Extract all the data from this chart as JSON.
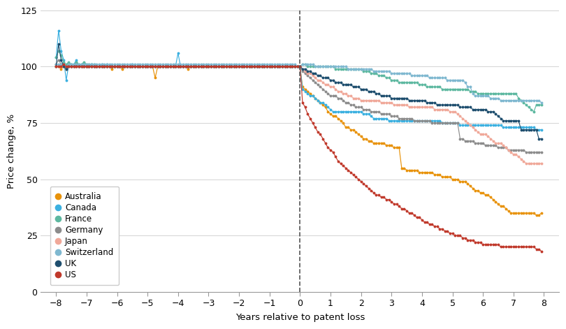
{
  "countries": [
    "Australia",
    "Canada",
    "France",
    "Germany",
    "Japan",
    "Switzerland",
    "UK",
    "US"
  ],
  "colors": [
    "#E8920A",
    "#3BB0E0",
    "#5DB8A0",
    "#8C8C8C",
    "#F0A899",
    "#7FB8D0",
    "#1E4E6E",
    "#C0392B"
  ],
  "step": 0.083333,
  "x_start": -8,
  "x_end": 8,
  "Australia_pre": [
    100,
    100,
    99,
    100,
    99,
    100,
    100,
    100,
    100,
    100,
    100,
    100,
    100,
    100,
    100,
    100,
    100,
    100,
    100,
    100,
    100,
    100,
    99,
    100,
    100,
    100,
    99,
    100,
    100,
    100,
    100,
    100,
    100,
    100,
    100,
    100,
    100,
    100,
    100,
    95,
    100,
    100,
    100,
    100,
    100,
    100,
    100,
    100,
    100,
    100,
    100,
    100,
    99,
    100,
    100,
    100,
    100,
    100,
    100,
    100,
    100,
    100,
    100,
    100,
    100,
    100,
    100,
    100,
    100,
    100,
    100,
    100,
    100,
    100,
    100,
    100,
    100,
    100,
    100,
    100,
    100,
    100,
    100,
    100,
    100,
    100,
    100,
    100,
    100,
    100,
    100,
    100,
    100,
    100,
    100,
    100
  ],
  "Australia_post": [
    100,
    91,
    90,
    89,
    88,
    87,
    86,
    85,
    84,
    83,
    82,
    80,
    79,
    78,
    78,
    77,
    76,
    75,
    73,
    73,
    72,
    72,
    71,
    70,
    69,
    68,
    68,
    67,
    67,
    66,
    66,
    66,
    66,
    66,
    65,
    65,
    65,
    64,
    64,
    64,
    55,
    55,
    54,
    54,
    54,
    54,
    54,
    53,
    53,
    53,
    53,
    53,
    53,
    52,
    52,
    52,
    51,
    51,
    51,
    51,
    50,
    50,
    50,
    49,
    49,
    49,
    48,
    47,
    46,
    45,
    45,
    44,
    44,
    43,
    43,
    42,
    41,
    40,
    39,
    38,
    38,
    37,
    36,
    35,
    35,
    35,
    35,
    35,
    35,
    35,
    35,
    35,
    35,
    34,
    34,
    35
  ],
  "Canada_pre": [
    104,
    116,
    107,
    103,
    94,
    101,
    101,
    101,
    103,
    100,
    101,
    101,
    100,
    100,
    101,
    100,
    100,
    100,
    101,
    100,
    101,
    100,
    100,
    100,
    100,
    100,
    100,
    100,
    100,
    100,
    101,
    100,
    100,
    100,
    100,
    100,
    100,
    100,
    100,
    100,
    100,
    100,
    100,
    100,
    100,
    100,
    100,
    100,
    106,
    100,
    100,
    100,
    100,
    100,
    100,
    100,
    100,
    100,
    100,
    100,
    100,
    100,
    100,
    100,
    100,
    100,
    100,
    100,
    100,
    100,
    100,
    100,
    100,
    100,
    100,
    100,
    100,
    100,
    100,
    100,
    100,
    100,
    100,
    100,
    100,
    100,
    100,
    100,
    100,
    100,
    100,
    100,
    100,
    100,
    100,
    100
  ],
  "Canada_post": [
    100,
    90,
    89,
    88,
    87,
    87,
    86,
    85,
    84,
    84,
    83,
    82,
    81,
    80,
    80,
    80,
    80,
    80,
    80,
    80,
    80,
    80,
    80,
    80,
    80,
    79,
    79,
    79,
    78,
    77,
    77,
    77,
    77,
    77,
    77,
    76,
    76,
    76,
    76,
    76,
    76,
    76,
    76,
    76,
    76,
    76,
    76,
    76,
    76,
    76,
    76,
    76,
    76,
    76,
    76,
    76,
    75,
    75,
    75,
    75,
    75,
    75,
    75,
    74,
    74,
    74,
    74,
    74,
    74,
    74,
    74,
    74,
    74,
    74,
    74,
    74,
    74,
    74,
    74,
    74,
    73,
    73,
    73,
    73,
    73,
    73,
    73,
    73,
    73,
    73,
    73,
    73,
    73,
    72,
    72,
    72
  ],
  "France_pre": [
    104,
    107,
    105,
    102,
    101,
    102,
    101,
    101,
    102,
    101,
    101,
    102,
    101,
    101,
    101,
    101,
    100,
    100,
    100,
    100,
    100,
    100,
    100,
    100,
    100,
    100,
    100,
    100,
    100,
    100,
    100,
    100,
    100,
    100,
    100,
    100,
    100,
    100,
    100,
    100,
    100,
    100,
    100,
    100,
    100,
    100,
    100,
    100,
    100,
    100,
    100,
    100,
    100,
    100,
    100,
    100,
    100,
    100,
    100,
    100,
    100,
    100,
    100,
    100,
    100,
    100,
    100,
    100,
    100,
    100,
    100,
    100,
    100,
    100,
    100,
    100,
    100,
    100,
    100,
    100,
    100,
    100,
    100,
    100,
    100,
    100,
    100,
    100,
    100,
    100,
    100,
    100,
    100,
    100,
    100,
    100
  ],
  "France_post": [
    100,
    101,
    101,
    100,
    100,
    100,
    100,
    100,
    100,
    100,
    100,
    100,
    100,
    100,
    99,
    99,
    99,
    99,
    99,
    99,
    99,
    99,
    99,
    99,
    99,
    98,
    98,
    98,
    97,
    97,
    97,
    96,
    96,
    96,
    95,
    95,
    94,
    94,
    94,
    93,
    93,
    93,
    93,
    93,
    93,
    93,
    93,
    92,
    92,
    92,
    91,
    91,
    91,
    91,
    91,
    91,
    90,
    90,
    90,
    90,
    90,
    90,
    90,
    90,
    90,
    90,
    90,
    89,
    89,
    89,
    88,
    88,
    88,
    88,
    88,
    88,
    88,
    88,
    88,
    88,
    88,
    88,
    88,
    88,
    88,
    88,
    86,
    85,
    84,
    83,
    82,
    81,
    80,
    83,
    83,
    83
  ],
  "Germany_pre": [
    101,
    103,
    101,
    100,
    99,
    100,
    100,
    100,
    101,
    100,
    100,
    100,
    100,
    100,
    100,
    100,
    100,
    100,
    100,
    100,
    100,
    100,
    100,
    100,
    100,
    100,
    100,
    100,
    100,
    100,
    100,
    100,
    100,
    100,
    100,
    100,
    100,
    100,
    100,
    100,
    100,
    100,
    100,
    100,
    100,
    100,
    100,
    100,
    100,
    100,
    100,
    100,
    100,
    100,
    100,
    100,
    100,
    100,
    100,
    100,
    100,
    100,
    100,
    100,
    100,
    100,
    100,
    100,
    100,
    100,
    100,
    100,
    100,
    100,
    100,
    100,
    100,
    100,
    100,
    100,
    100,
    100,
    100,
    100,
    100,
    100,
    100,
    100,
    100,
    100,
    100,
    100,
    100,
    100,
    100,
    100
  ],
  "Germany_post": [
    100,
    98,
    97,
    96,
    95,
    94,
    93,
    92,
    91,
    90,
    89,
    88,
    87,
    87,
    87,
    86,
    86,
    85,
    84,
    84,
    83,
    83,
    82,
    82,
    82,
    81,
    81,
    81,
    80,
    80,
    80,
    80,
    79,
    79,
    79,
    79,
    78,
    78,
    78,
    77,
    77,
    77,
    77,
    77,
    77,
    76,
    76,
    76,
    76,
    76,
    76,
    76,
    75,
    75,
    75,
    75,
    75,
    75,
    75,
    75,
    75,
    75,
    75,
    68,
    68,
    67,
    67,
    67,
    67,
    66,
    66,
    66,
    66,
    65,
    65,
    65,
    65,
    65,
    64,
    64,
    64,
    64,
    63,
    63,
    63,
    63,
    63,
    63,
    63,
    62,
    62,
    62,
    62,
    62,
    62,
    62
  ],
  "Japan_pre": [
    101,
    100,
    100,
    100,
    100,
    100,
    100,
    100,
    100,
    100,
    100,
    100,
    100,
    100,
    100,
    100,
    100,
    100,
    100,
    100,
    100,
    100,
    100,
    100,
    100,
    100,
    100,
    100,
    100,
    100,
    100,
    100,
    100,
    100,
    100,
    100,
    100,
    100,
    100,
    100,
    100,
    100,
    100,
    100,
    100,
    100,
    100,
    100,
    100,
    100,
    100,
    100,
    100,
    100,
    100,
    100,
    100,
    100,
    100,
    100,
    100,
    100,
    100,
    100,
    100,
    100,
    100,
    100,
    100,
    100,
    100,
    100,
    100,
    100,
    100,
    100,
    100,
    100,
    100,
    100,
    100,
    100,
    100,
    100,
    100,
    100,
    100,
    100,
    100,
    100,
    100,
    100,
    100,
    100,
    100,
    100
  ],
  "Japan_post": [
    100,
    99,
    98,
    97,
    97,
    96,
    95,
    94,
    94,
    93,
    92,
    92,
    91,
    91,
    90,
    89,
    89,
    88,
    88,
    87,
    87,
    86,
    86,
    86,
    85,
    85,
    85,
    85,
    85,
    85,
    85,
    85,
    84,
    84,
    84,
    84,
    84,
    83,
    83,
    83,
    83,
    83,
    83,
    82,
    82,
    82,
    82,
    82,
    82,
    82,
    82,
    82,
    82,
    81,
    81,
    81,
    81,
    81,
    81,
    80,
    80,
    80,
    79,
    78,
    77,
    76,
    75,
    74,
    73,
    72,
    71,
    70,
    70,
    70,
    69,
    68,
    67,
    66,
    66,
    66,
    65,
    64,
    63,
    62,
    61,
    61,
    60,
    59,
    58,
    57,
    57,
    57,
    57,
    57,
    57,
    57
  ],
  "Switzerland_pre": [
    101,
    101,
    101,
    101,
    100,
    101,
    101,
    101,
    101,
    101,
    101,
    101,
    101,
    101,
    101,
    101,
    101,
    101,
    101,
    101,
    101,
    101,
    101,
    101,
    101,
    101,
    101,
    101,
    101,
    101,
    101,
    101,
    101,
    101,
    101,
    101,
    101,
    101,
    101,
    101,
    101,
    101,
    101,
    101,
    101,
    101,
    101,
    101,
    101,
    101,
    101,
    101,
    101,
    101,
    101,
    101,
    101,
    101,
    101,
    101,
    101,
    101,
    101,
    101,
    101,
    101,
    101,
    101,
    101,
    101,
    101,
    101,
    101,
    101,
    101,
    101,
    101,
    101,
    101,
    101,
    101,
    101,
    101,
    101,
    101,
    101,
    101,
    101,
    101,
    101,
    101,
    101,
    101,
    101,
    101,
    100
  ],
  "Switzerland_post": [
    100,
    101,
    101,
    101,
    101,
    101,
    100,
    100,
    100,
    100,
    100,
    100,
    100,
    100,
    100,
    100,
    100,
    100,
    100,
    99,
    99,
    99,
    99,
    99,
    99,
    99,
    99,
    99,
    99,
    98,
    98,
    98,
    98,
    98,
    98,
    98,
    97,
    97,
    97,
    97,
    97,
    97,
    97,
    97,
    96,
    96,
    96,
    96,
    96,
    96,
    96,
    95,
    95,
    95,
    95,
    95,
    95,
    95,
    94,
    94,
    94,
    94,
    94,
    94,
    94,
    93,
    91,
    91,
    88,
    87,
    87,
    87,
    87,
    87,
    87,
    86,
    86,
    86,
    86,
    85,
    85,
    85,
    85,
    85,
    85,
    85,
    85,
    85,
    85,
    85,
    85,
    85,
    85,
    85,
    85,
    84
  ],
  "UK_pre": [
    100,
    110,
    103,
    100,
    99,
    100,
    100,
    100,
    100,
    100,
    100,
    100,
    100,
    100,
    100,
    100,
    100,
    100,
    100,
    100,
    100,
    100,
    100,
    100,
    100,
    100,
    100,
    100,
    100,
    100,
    100,
    100,
    100,
    100,
    100,
    100,
    100,
    100,
    100,
    100,
    100,
    100,
    100,
    100,
    100,
    100,
    100,
    100,
    100,
    100,
    100,
    100,
    100,
    100,
    100,
    100,
    100,
    100,
    100,
    100,
    100,
    100,
    100,
    100,
    100,
    100,
    100,
    100,
    100,
    100,
    100,
    100,
    100,
    100,
    100,
    100,
    100,
    100,
    100,
    100,
    100,
    100,
    100,
    100,
    100,
    100,
    100,
    100,
    100,
    100,
    100,
    100,
    100,
    100,
    100,
    100
  ],
  "UK_post": [
    100,
    99,
    99,
    98,
    98,
    97,
    97,
    96,
    96,
    95,
    95,
    95,
    94,
    94,
    93,
    93,
    93,
    92,
    92,
    92,
    92,
    91,
    91,
    91,
    90,
    90,
    90,
    89,
    89,
    89,
    88,
    88,
    87,
    87,
    87,
    87,
    86,
    86,
    86,
    86,
    86,
    86,
    86,
    85,
    85,
    85,
    85,
    85,
    85,
    85,
    84,
    84,
    84,
    84,
    83,
    83,
    83,
    83,
    83,
    83,
    83,
    83,
    83,
    82,
    82,
    82,
    82,
    82,
    81,
    81,
    81,
    81,
    81,
    81,
    80,
    80,
    80,
    79,
    78,
    77,
    76,
    76,
    76,
    76,
    76,
    76,
    76,
    72,
    72,
    72,
    72,
    72,
    72,
    72,
    68,
    68
  ],
  "US_pre": [
    100,
    100,
    100,
    101,
    100,
    100,
    100,
    100,
    100,
    100,
    100,
    100,
    100,
    100,
    100,
    100,
    100,
    100,
    100,
    100,
    100,
    100,
    100,
    100,
    100,
    100,
    100,
    100,
    100,
    100,
    100,
    100,
    100,
    100,
    100,
    100,
    100,
    100,
    100,
    100,
    100,
    100,
    100,
    100,
    100,
    100,
    100,
    100,
    100,
    100,
    100,
    100,
    100,
    100,
    100,
    100,
    100,
    100,
    100,
    100,
    100,
    100,
    100,
    100,
    100,
    100,
    100,
    100,
    100,
    100,
    100,
    100,
    100,
    100,
    100,
    100,
    100,
    100,
    100,
    100,
    100,
    100,
    100,
    100,
    100,
    100,
    100,
    100,
    100,
    100,
    100,
    100,
    100,
    100,
    100,
    100
  ],
  "US_post": [
    100,
    84,
    82,
    79,
    77,
    75,
    73,
    71,
    70,
    68,
    66,
    64,
    63,
    62,
    60,
    58,
    57,
    56,
    55,
    54,
    53,
    52,
    51,
    50,
    49,
    48,
    47,
    46,
    45,
    44,
    43,
    43,
    42,
    42,
    41,
    41,
    40,
    39,
    39,
    38,
    37,
    37,
    36,
    35,
    35,
    34,
    33,
    33,
    32,
    31,
    31,
    30,
    30,
    29,
    29,
    28,
    28,
    27,
    27,
    26,
    26,
    25,
    25,
    25,
    24,
    24,
    23,
    23,
    23,
    22,
    22,
    22,
    21,
    21,
    21,
    21,
    21,
    21,
    21,
    20,
    20,
    20,
    20,
    20,
    20,
    20,
    20,
    20,
    20,
    20,
    20,
    20,
    20,
    19,
    19,
    18
  ],
  "ylim": [
    0,
    125
  ],
  "xlim": [
    -8.5,
    8.5
  ],
  "xlabel": "Years relative to patent loss",
  "ylabel": "Price change, %",
  "yticks": [
    0,
    25,
    50,
    75,
    100,
    125
  ],
  "xticks": [
    -8,
    -7,
    -6,
    -5,
    -4,
    -3,
    -2,
    -1,
    0,
    1,
    2,
    3,
    4,
    5,
    6,
    7,
    8
  ],
  "background_color": "#FFFFFF",
  "grid_color": "#CCCCCC"
}
